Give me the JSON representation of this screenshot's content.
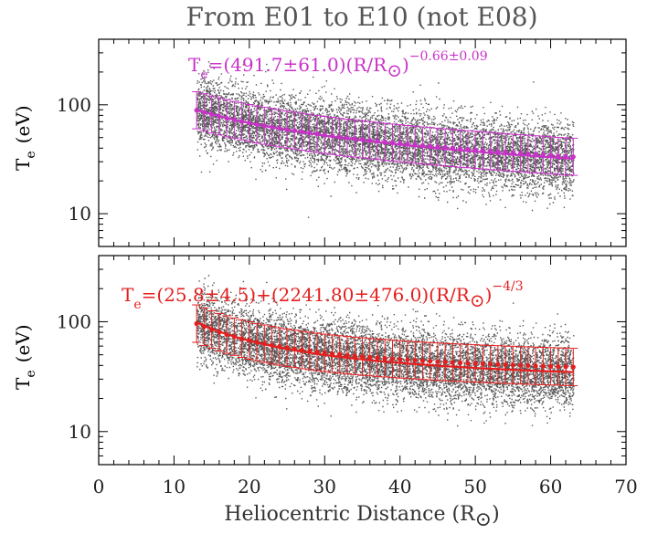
{
  "figure": {
    "title": "From E01 to E10 (not E08)",
    "xlabel_prefix": "Heliocentric Distance (R",
    "xlabel_suffix": ")"
  },
  "chart_data": [
    {
      "type": "scatter",
      "panel": "top",
      "ylabel_main": "T",
      "ylabel_sub": "e",
      "ylabel_unit": "(eV)",
      "yscale": "log",
      "xlim": [
        0,
        70
      ],
      "ylim": [
        5,
        400
      ],
      "xticks": [
        0,
        10,
        20,
        30,
        40,
        50,
        60,
        70
      ],
      "yticks": [
        10,
        100
      ],
      "grid": false,
      "scatter_color": "#3a3a3a",
      "fit": {
        "model": "power",
        "A": 491.7,
        "A_err": 61.0,
        "alpha": -0.66,
        "alpha_err": 0.09,
        "color": "#c832c8",
        "label_T": "T",
        "label_sub": "e",
        "label_main": "=(491.7±61.0)(R/R",
        "label_close": ")",
        "label_exp": "−0.66±0.09"
      },
      "binned": {
        "x": [
          13,
          14,
          15,
          16,
          17,
          18,
          19,
          20,
          21,
          22,
          23,
          24,
          25,
          26,
          27,
          28,
          29,
          30,
          31,
          32,
          33,
          34,
          35,
          36,
          37,
          38,
          39,
          40,
          41,
          42,
          43,
          44,
          45,
          46,
          47,
          48,
          49,
          50,
          51,
          52,
          53,
          54,
          55,
          56,
          57,
          58,
          59,
          60,
          61,
          62,
          63
        ],
        "y": [
          89.1,
          85.2,
          81.5,
          78.4,
          75.2,
          72.7,
          70.4,
          68.0,
          66.0,
          64.2,
          62.5,
          60.9,
          59.3,
          57.8,
          56.5,
          55.3,
          54.1,
          52.9,
          51.8,
          50.7,
          49.8,
          49.0,
          48.2,
          47.3,
          46.6,
          45.7,
          45.0,
          44.4,
          43.6,
          43.0,
          42.3,
          41.8,
          41.2,
          40.6,
          40.1,
          39.5,
          39.1,
          38.6,
          38.1,
          37.6,
          37.2,
          36.8,
          36.3,
          35.9,
          35.5,
          35.1,
          34.8,
          34.3,
          33.9,
          33.6,
          33.3
        ],
        "err_factor": 1.48
      }
    },
    {
      "type": "scatter",
      "panel": "bottom",
      "ylabel_main": "T",
      "ylabel_sub": "e",
      "ylabel_unit": "(eV)",
      "yscale": "log",
      "xlim": [
        0,
        70
      ],
      "ylim": [
        5,
        400
      ],
      "xticks": [
        0,
        10,
        20,
        30,
        40,
        50,
        60,
        70
      ],
      "yticks": [
        10,
        100
      ],
      "grid": false,
      "scatter_color": "#3a3a3a",
      "fit": {
        "model": "offset_power",
        "C": 25.8,
        "C_err": 4.5,
        "A": 2241.8,
        "A_err": 476.0,
        "alpha": -1.3333,
        "color": "#e61e1e",
        "label_T": "T",
        "label_sub": "e",
        "label_main": "=(25.8±4.5)+(2241.80±476.0)(R/R",
        "label_close": ")",
        "label_exp": "−4/3"
      },
      "binned": {
        "x": [
          13,
          14,
          15,
          16,
          17,
          18,
          19,
          20,
          21,
          22,
          23,
          24,
          25,
          26,
          27,
          28,
          29,
          30,
          31,
          32,
          33,
          34,
          35,
          36,
          37,
          38,
          39,
          40,
          41,
          42,
          43,
          44,
          45,
          46,
          47,
          48,
          49,
          50,
          51,
          52,
          53,
          54,
          55,
          56,
          57,
          58,
          59,
          60,
          61,
          62,
          63
        ],
        "y": [
          96.1,
          90.0,
          84.9,
          80.3,
          76.4,
          73.1,
          70.1,
          67.5,
          65.2,
          63.1,
          61.2,
          59.5,
          58.0,
          56.6,
          55.3,
          54.2,
          53.1,
          52.1,
          51.2,
          50.4,
          49.6,
          48.9,
          48.2,
          47.6,
          47.0,
          46.5,
          45.9,
          45.4,
          45.0,
          44.6,
          44.1,
          43.7,
          43.3,
          43.0,
          42.6,
          42.3,
          42.0,
          41.7,
          41.4,
          41.1,
          40.9,
          40.6,
          40.4,
          40.1,
          39.9,
          39.7,
          39.5,
          39.3,
          39.1,
          38.9,
          38.7
        ],
        "err_factor": 1.48
      }
    }
  ]
}
